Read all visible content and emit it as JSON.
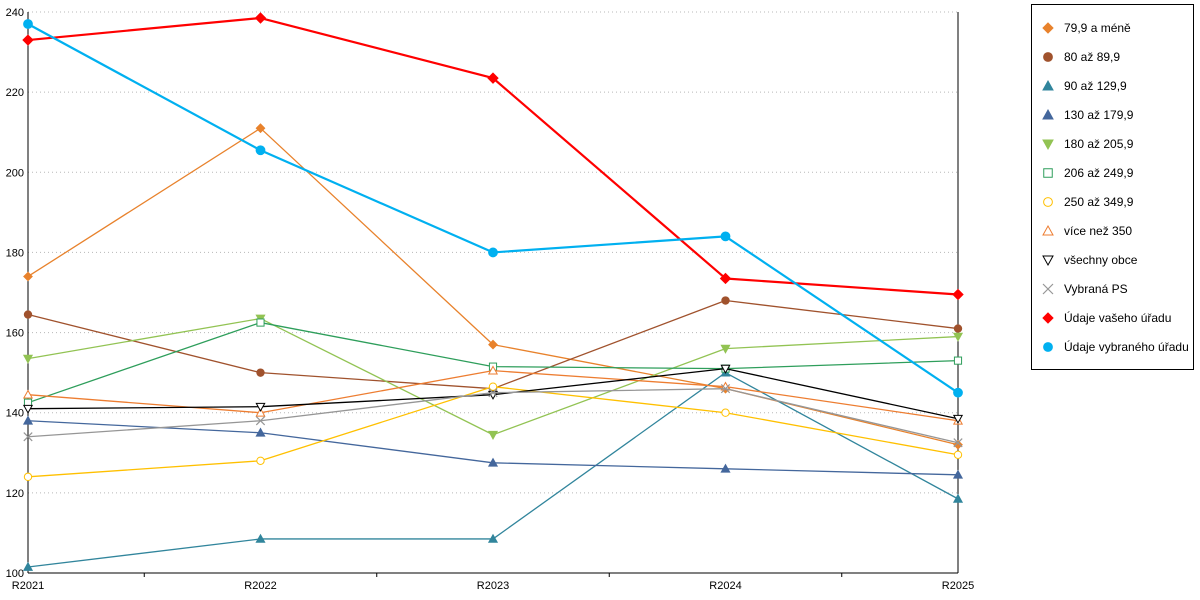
{
  "chart_data": {
    "type": "line",
    "title": "",
    "xlabel": "",
    "ylabel": "",
    "categories": [
      "R2021",
      "R2022",
      "R2023",
      "R2024",
      "R2025"
    ],
    "ylim": [
      100,
      240
    ],
    "ytick_step": 20,
    "ytick_labels": [
      "100",
      "120",
      "140",
      "160",
      "180",
      "200",
      "220",
      "240"
    ],
    "grid": "horizontal-dotted",
    "grid_color": "#b8b8b8",
    "axis_color": "#000000",
    "legend_position": "right",
    "series": [
      {
        "name": "79,9 a méně",
        "color": "#E8822C",
        "marker": "diamond",
        "fill": true,
        "line_width": 1.3,
        "values": [
          174,
          211,
          157,
          146,
          132
        ]
      },
      {
        "name": "80 až 89,9",
        "color": "#A0522D",
        "marker": "circle",
        "fill": true,
        "line_width": 1.3,
        "values": [
          164.5,
          150,
          146,
          168,
          161
        ]
      },
      {
        "name": "90 až 129,9",
        "color": "#31859C",
        "marker": "triangle-up",
        "fill": true,
        "line_width": 1.3,
        "values": [
          101.5,
          108.5,
          108.5,
          150,
          118.5
        ]
      },
      {
        "name": "130 až 179,9",
        "color": "#44679C",
        "marker": "triangle-up",
        "fill": true,
        "line_width": 1.3,
        "values": [
          138,
          135,
          127.5,
          126,
          124.5
        ]
      },
      {
        "name": "180 až 205,9",
        "color": "#92C353",
        "marker": "triangle-down",
        "fill": true,
        "line_width": 1.3,
        "values": [
          153.5,
          163.5,
          134.5,
          156,
          159
        ]
      },
      {
        "name": "206 až 249,9",
        "color": "#2E9E5B",
        "marker": "square",
        "fill": false,
        "line_width": 1.3,
        "values": [
          142.5,
          162.5,
          151.5,
          151,
          153
        ]
      },
      {
        "name": "250 až 349,9",
        "color": "#FFC000",
        "marker": "circle",
        "fill": false,
        "line_width": 1.3,
        "values": [
          124,
          128,
          146.5,
          140,
          129.5
        ]
      },
      {
        "name": "více než 350",
        "color": "#ED7D31",
        "marker": "triangle-up",
        "fill": false,
        "line_width": 1.3,
        "values": [
          144.5,
          140,
          150.5,
          146.5,
          138
        ]
      },
      {
        "name": "všechny obce",
        "color": "#000000",
        "marker": "triangle-down",
        "fill": false,
        "line_width": 1.3,
        "values": [
          141,
          141.5,
          144.5,
          151,
          138.5
        ]
      },
      {
        "name": "Vybraná PS",
        "color": "#969696",
        "marker": "x",
        "fill": false,
        "line_width": 1.3,
        "values": [
          134,
          138,
          145,
          146,
          132.5
        ]
      },
      {
        "name": "Údaje vašeho úřadu",
        "color": "#FF0000",
        "marker": "diamond",
        "fill": true,
        "line_width": 2.2,
        "values": [
          233,
          238.5,
          223.5,
          173.5,
          169.5
        ]
      },
      {
        "name": "Údaje vybraného úřadu",
        "color": "#00B0F0",
        "marker": "circle",
        "fill": true,
        "line_width": 2.2,
        "values": [
          237,
          205.5,
          180,
          184,
          145
        ]
      }
    ]
  }
}
